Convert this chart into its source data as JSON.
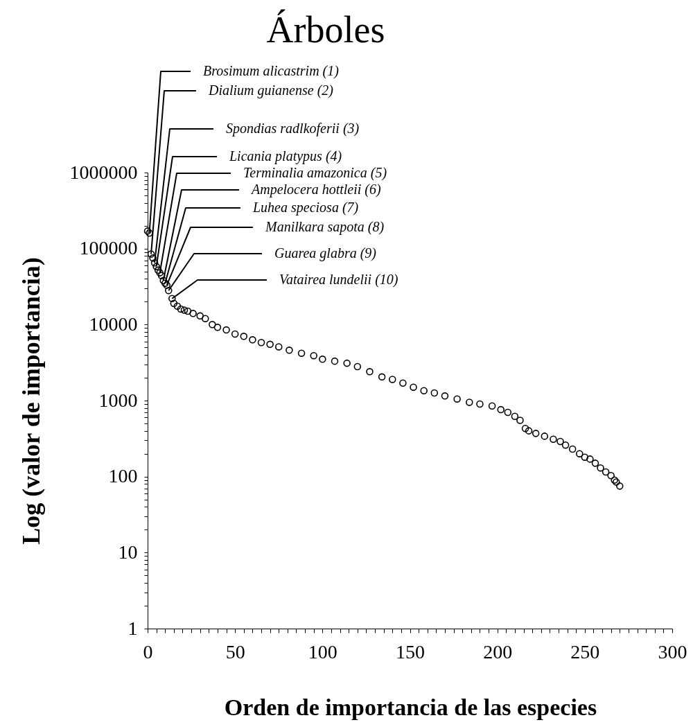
{
  "chart_data": {
    "type": "scatter",
    "title": "Árboles",
    "xlabel": "Orden de importancia de las especies",
    "ylabel": "Log (valor de importancia)",
    "x": [
      0,
      1,
      2,
      3,
      4,
      5,
      6,
      7,
      8,
      9,
      10,
      11,
      12,
      14,
      15,
      17,
      19,
      21,
      23,
      26,
      30,
      33,
      37,
      40,
      45,
      50,
      55,
      60,
      65,
      70,
      75,
      81,
      88,
      95,
      100,
      107,
      114,
      120,
      127,
      134,
      140,
      146,
      152,
      158,
      164,
      170,
      177,
      184,
      190,
      197,
      202,
      206,
      210,
      213,
      216,
      218,
      222,
      227,
      232,
      236,
      239,
      243,
      247,
      250,
      253,
      256,
      259,
      262,
      265,
      267,
      268,
      270
    ],
    "series": [
      {
        "color": "#000000",
        "values": [
          170000,
          160000,
          85000,
          75000,
          65000,
          58000,
          52000,
          48000,
          44000,
          38000,
          35000,
          33000,
          28000,
          22000,
          19000,
          17500,
          16000,
          15500,
          15000,
          14000,
          13000,
          12000,
          10000,
          9200,
          8500,
          7500,
          7000,
          6300,
          5800,
          5500,
          5100,
          4600,
          4200,
          3900,
          3500,
          3300,
          3100,
          2800,
          2400,
          2050,
          1900,
          1700,
          1500,
          1350,
          1260,
          1150,
          1050,
          950,
          900,
          850,
          760,
          700,
          620,
          550,
          430,
          400,
          370,
          340,
          310,
          290,
          260,
          230,
          200,
          180,
          170,
          150,
          130,
          115,
          103,
          90,
          85,
          75
        ]
      }
    ],
    "marker": "circle",
    "log": "y",
    "grid": false,
    "xlim": [
      0,
      300
    ],
    "xticks": [
      0,
      {
        "value": 5,
        "label": null
      },
      {
        "value": 10,
        "label": null
      },
      {
        "value": 15,
        "label": null
      },
      {
        "value": 20,
        "label": null
      },
      {
        "value": 25,
        "label": null
      },
      {
        "value": 30,
        "label": null
      },
      {
        "value": 35,
        "label": null
      },
      {
        "value": 40,
        "label": null
      },
      {
        "value": 45,
        "label": null
      },
      50,
      {
        "value": 55,
        "label": null
      },
      {
        "value": 60,
        "label": null
      },
      {
        "value": 65,
        "label": null
      },
      {
        "value": 70,
        "label": null
      },
      {
        "value": 75,
        "label": null
      },
      {
        "value": 80,
        "label": null
      },
      {
        "value": 85,
        "label": null
      },
      {
        "value": 90,
        "label": null
      },
      {
        "value": 95,
        "label": null
      },
      100,
      {
        "value": 105,
        "label": null
      },
      {
        "value": 110,
        "label": null
      },
      {
        "value": 115,
        "label": null
      },
      {
        "value": 120,
        "label": null
      },
      {
        "value": 125,
        "label": null
      },
      {
        "value": 130,
        "label": null
      },
      {
        "value": 135,
        "label": null
      },
      {
        "value": 140,
        "label": null
      },
      {
        "value": 145,
        "label": null
      },
      150,
      {
        "value": 155,
        "label": null
      },
      {
        "value": 160,
        "label": null
      },
      {
        "value": 165,
        "label": null
      },
      {
        "value": 170,
        "label": null
      },
      {
        "value": 175,
        "label": null
      },
      {
        "value": 180,
        "label": null
      },
      {
        "value": 185,
        "label": null
      },
      {
        "value": 190,
        "label": null
      },
      {
        "value": 195,
        "label": null
      },
      200,
      {
        "value": 205,
        "label": null
      },
      {
        "value": 210,
        "label": null
      },
      {
        "value": 215,
        "label": null
      },
      {
        "value": 220,
        "label": null
      },
      {
        "value": 225,
        "label": null
      },
      {
        "value": 230,
        "label": null
      },
      {
        "value": 235,
        "label": null
      },
      {
        "value": 240,
        "label": null
      },
      {
        "value": 245,
        "label": null
      },
      250,
      {
        "value": 255,
        "label": null
      },
      {
        "value": 260,
        "label": null
      },
      {
        "value": 265,
        "label": null
      },
      {
        "value": 270,
        "label": null
      },
      {
        "value": 275,
        "label": null
      },
      {
        "value": 280,
        "label": null
      },
      {
        "value": 285,
        "label": null
      },
      {
        "value": 290,
        "label": null
      },
      {
        "value": 295,
        "label": null
      },
      300
    ],
    "ylim": [
      1,
      1000000
    ],
    "yticks": [
      1,
      {
        "value": 2,
        "label": null
      },
      {
        "value": 3,
        "label": null
      },
      {
        "value": 4,
        "label": null
      },
      {
        "value": 5,
        "label": null
      },
      {
        "value": 6,
        "label": null
      },
      {
        "value": 7,
        "label": null
      },
      {
        "value": 8,
        "label": null
      },
      {
        "value": 9,
        "label": null
      },
      10,
      {
        "value": 20,
        "label": null
      },
      {
        "value": 30,
        "label": null
      },
      {
        "value": 40,
        "label": null
      },
      {
        "value": 50,
        "label": null
      },
      {
        "value": 60,
        "label": null
      },
      {
        "value": 70,
        "label": null
      },
      {
        "value": 80,
        "label": null
      },
      {
        "value": 90,
        "label": null
      },
      100,
      {
        "value": 200,
        "label": null
      },
      {
        "value": 300,
        "label": null
      },
      {
        "value": 400,
        "label": null
      },
      {
        "value": 500,
        "label": null
      },
      {
        "value": 600,
        "label": null
      },
      {
        "value": 700,
        "label": null
      },
      {
        "value": 800,
        "label": null
      },
      {
        "value": 900,
        "label": null
      },
      1000,
      {
        "value": 2000,
        "label": null
      },
      {
        "value": 3000,
        "label": null
      },
      {
        "value": 4000,
        "label": null
      },
      {
        "value": 5000,
        "label": null
      },
      {
        "value": 6000,
        "label": null
      },
      {
        "value": 7000,
        "label": null
      },
      {
        "value": 8000,
        "label": null
      },
      {
        "value": 9000,
        "label": null
      },
      10000,
      {
        "value": 20000,
        "label": null
      },
      {
        "value": 30000,
        "label": null
      },
      {
        "value": 40000,
        "label": null
      },
      {
        "value": 50000,
        "label": null
      },
      {
        "value": 60000,
        "label": null
      },
      {
        "value": 70000,
        "label": null
      },
      {
        "value": 80000,
        "label": null
      },
      {
        "value": 90000,
        "label": null
      },
      100000,
      {
        "value": 200000,
        "label": null
      },
      {
        "value": 300000,
        "label": null
      },
      {
        "value": 400000,
        "label": null
      },
      {
        "value": 500000,
        "label": null
      },
      {
        "value": 600000,
        "label": null
      },
      {
        "value": 700000,
        "label": null
      },
      {
        "value": 800000,
        "label": null
      },
      {
        "value": 900000,
        "label": null
      },
      1000000
    ],
    "annotations": [
      {
        "text": "Brosimum alicastrim (1)",
        "x": 1,
        "y": 160000
      },
      {
        "text": "Dialium guianense (2)",
        "x": 2,
        "y": 85000
      },
      {
        "text": "Spondias radlkoferii (3)",
        "x": 4,
        "y": 65000
      },
      {
        "text": "Licania platypus (4)",
        "x": 5,
        "y": 58000
      },
      {
        "text": "Terminalia amazonica (5)",
        "x": 7,
        "y": 48000
      },
      {
        "text": "Ampelocera hottleii (6)",
        "x": 9,
        "y": 38000
      },
      {
        "text": "Luhea speciosa (7)",
        "x": 10,
        "y": 35000
      },
      {
        "text": "Manilkara sapota (8)",
        "x": 11,
        "y": 33000
      },
      {
        "text": "Guarea glabra (9)",
        "x": 12,
        "y": 28000
      },
      {
        "text": "Vatairea lundelii (10)",
        "x": 14,
        "y": 22000
      }
    ]
  }
}
